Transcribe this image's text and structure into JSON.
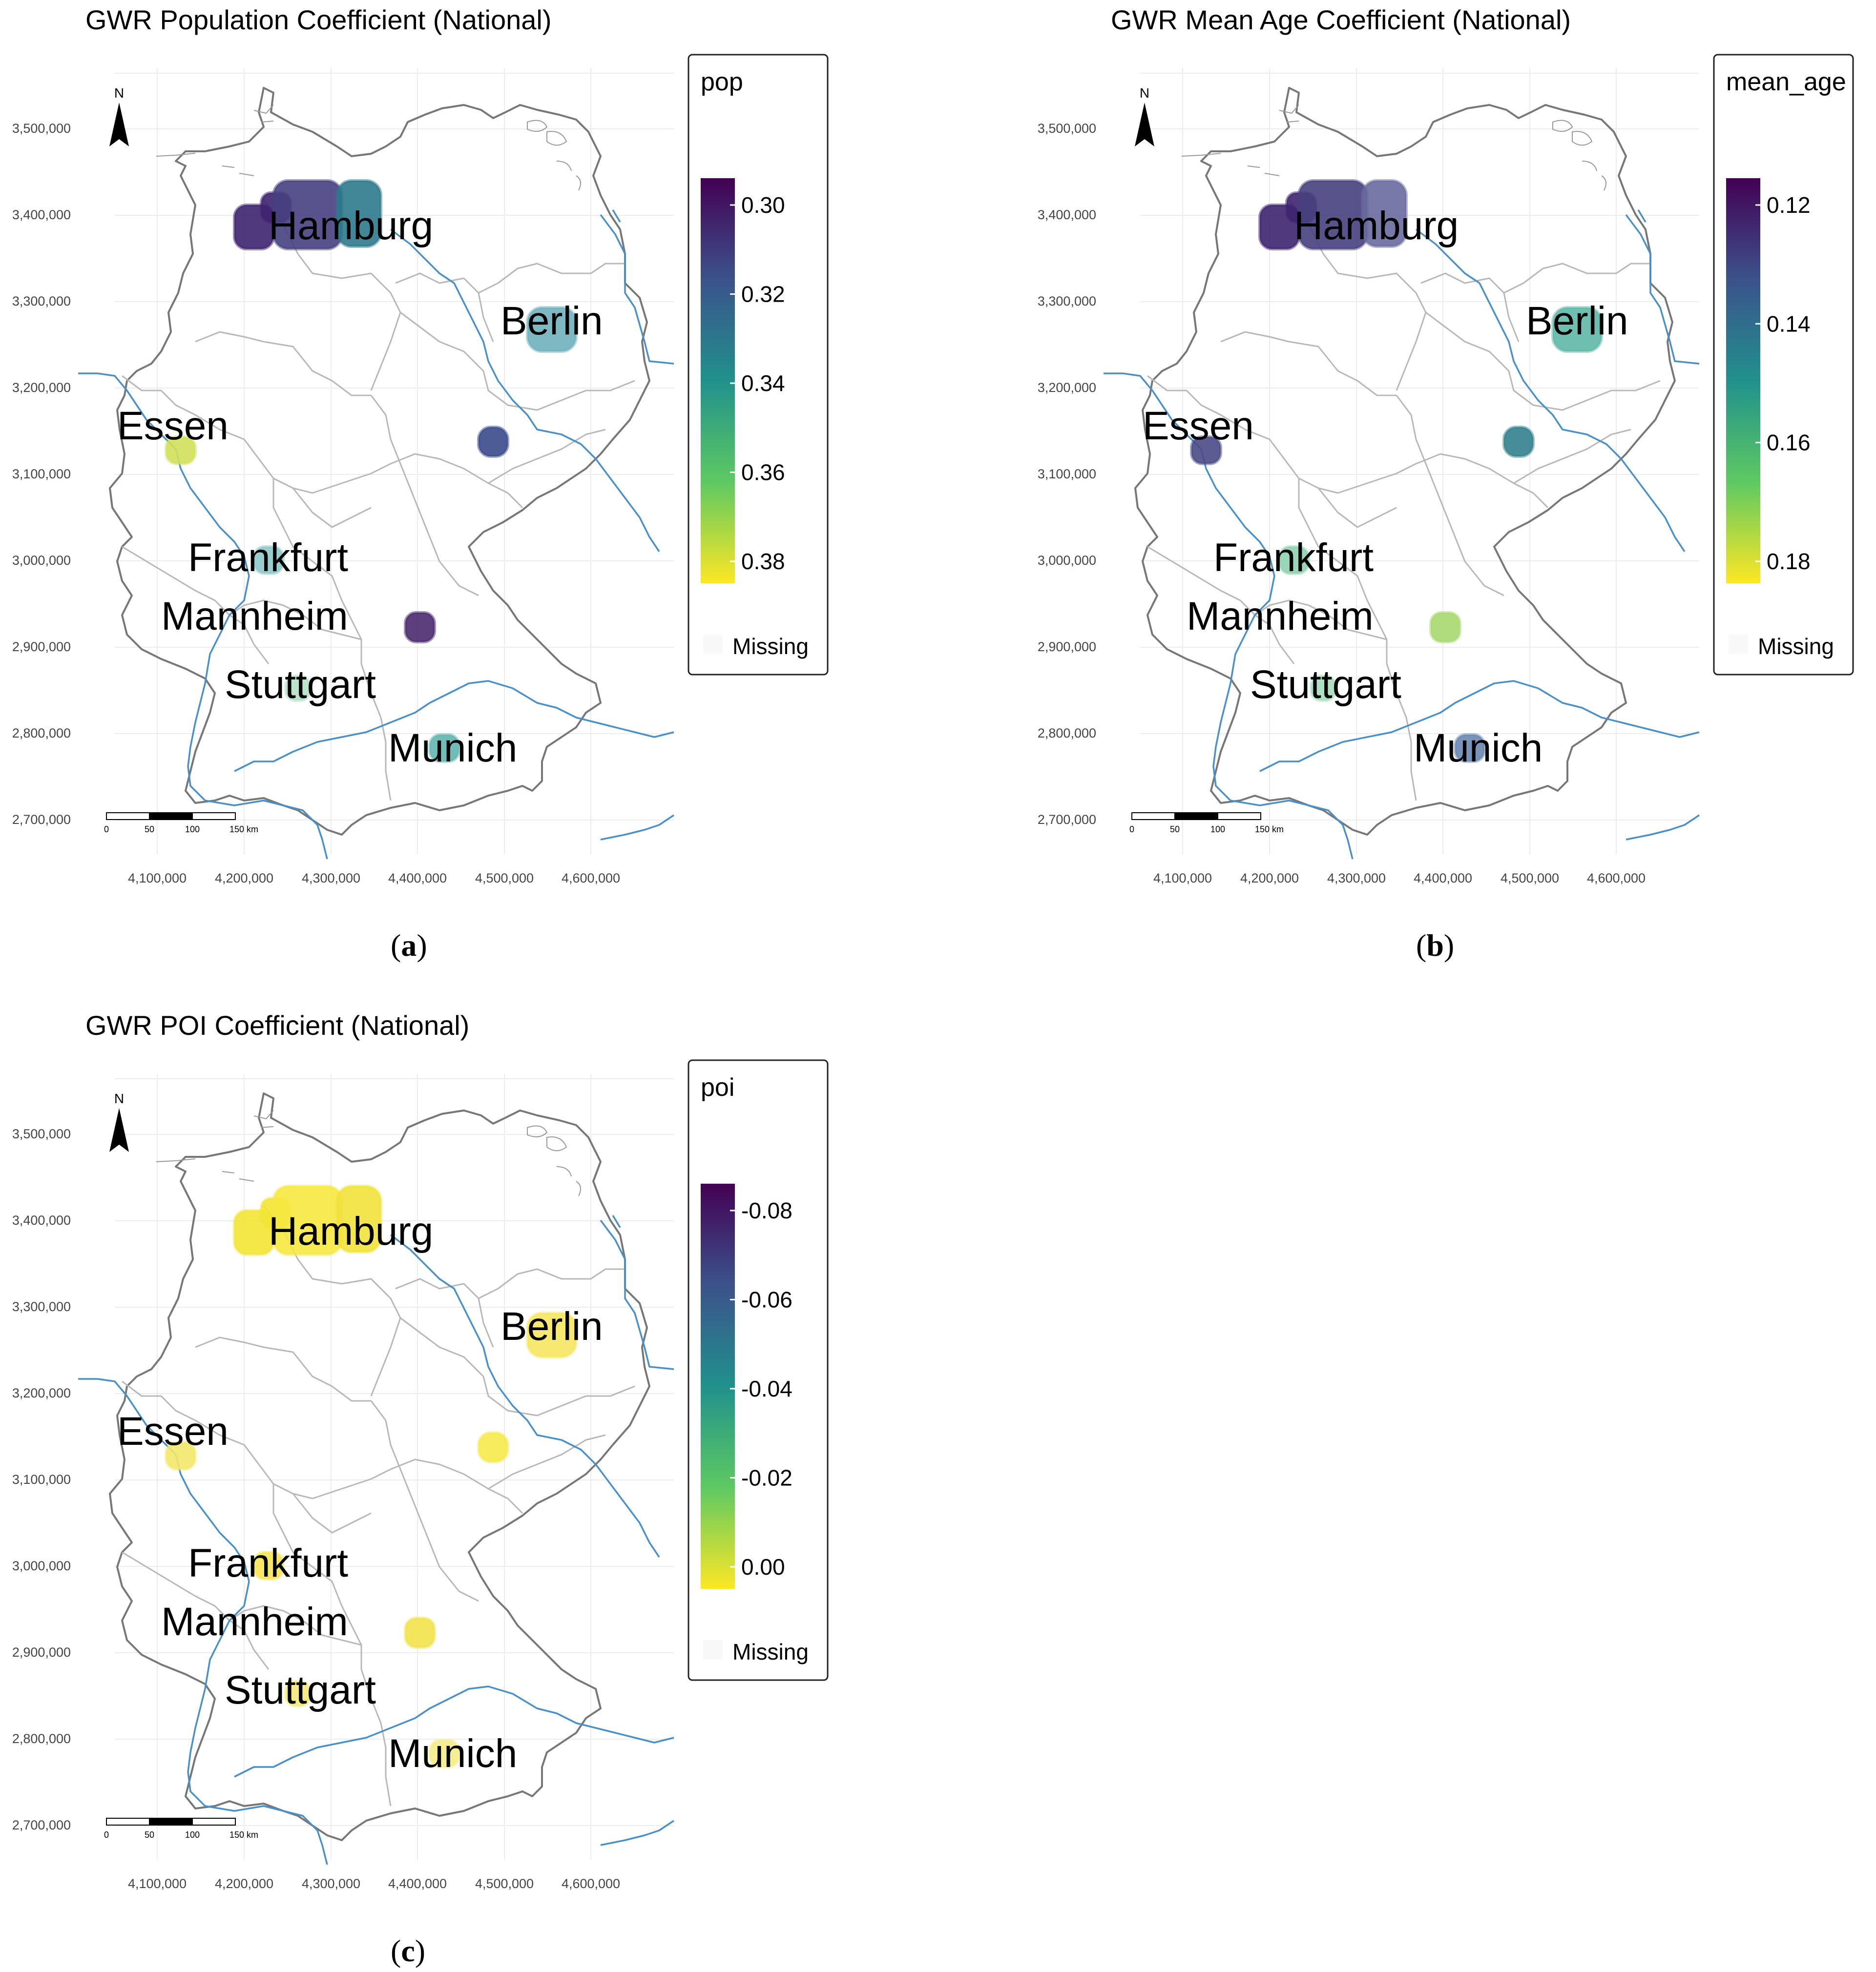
{
  "panels": [
    {
      "id": "a",
      "title": "GWR Population Coefficient (National)",
      "legend_title": "pop",
      "legend_ticks": [
        "0.30",
        "0.32",
        "0.34",
        "0.36",
        "0.38"
      ],
      "legend_missing": "Missing",
      "caption_letter": "a",
      "cluster_colors": {
        "hamburg_west": "#3e2470",
        "hamburg_center": "#46407f",
        "hamburg_east": "#2c7a8c",
        "berlin": "#6fb0bd",
        "essen": "#d2e05a",
        "leipzig": "#3a4a8c",
        "frankfurt": "#8fc8c8",
        "nuremberg": "#4a2a6e",
        "stuttgart": "#b6e0c8",
        "munich": "#62b5b0"
      }
    },
    {
      "id": "b",
      "title": "GWR Mean Age Coefficient (National)",
      "legend_title": "mean_age",
      "legend_ticks": [
        "0.12",
        "0.14",
        "0.16",
        "0.18"
      ],
      "legend_missing": "Missing",
      "caption_letter": "b",
      "cluster_colors": {
        "hamburg_west": "#3e2470",
        "hamburg_center": "#47407f",
        "hamburg_east": "#6a6aa0",
        "berlin": "#5fb8a8",
        "essen": "#4a4a86",
        "leipzig": "#33808e",
        "frankfurt": "#8fd0b0",
        "nuremberg": "#a8d870",
        "stuttgart": "#a8dcc0",
        "munich": "#6a86b0"
      }
    },
    {
      "id": "c",
      "title": "GWR POI Coefficient (National)",
      "legend_title": "poi",
      "legend_ticks": [
        "-0.08",
        "-0.06",
        "-0.04",
        "-0.02",
        "0.00"
      ],
      "legend_missing": "Missing",
      "caption_letter": "c",
      "cluster_colors": {
        "hamburg_west": "#f3e434",
        "hamburg_center": "#f6e840",
        "hamburg_east": "#f1e23a",
        "berlin": "#f5e660",
        "essen": "#f3e86a",
        "leipzig": "#f6ea4c",
        "frankfurt": "#f5e455",
        "nuremberg": "#f2e24a",
        "stuttgart": "#f4ea78",
        "munich": "#f5ec88"
      }
    }
  ],
  "axes": {
    "y_ticks": [
      "3,500,000",
      "3,400,000",
      "3,300,000",
      "3,200,000",
      "3,100,000",
      "3,000,000",
      "2,900,000",
      "2,800,000",
      "2,700,000"
    ],
    "x_ticks": [
      "4,100,000",
      "4,200,000",
      "4,300,000",
      "4,400,000",
      "4,500,000",
      "4,600,000"
    ]
  },
  "cities": [
    "Hamburg",
    "Berlin",
    "Essen",
    "Frankfurt",
    "Mannheim",
    "Stuttgart",
    "Munich"
  ],
  "scale_bar": {
    "labels": [
      "0",
      "50",
      "100",
      "150 km"
    ]
  },
  "north_arrow": {
    "label": "N"
  },
  "colors": {
    "river": "#4a90c8",
    "border": "#777777",
    "state_border": "#b5b5b5",
    "grid": "#ececec",
    "viridis": [
      "#fde725",
      "#5ec962",
      "#21918c",
      "#3b528b",
      "#440154"
    ]
  }
}
